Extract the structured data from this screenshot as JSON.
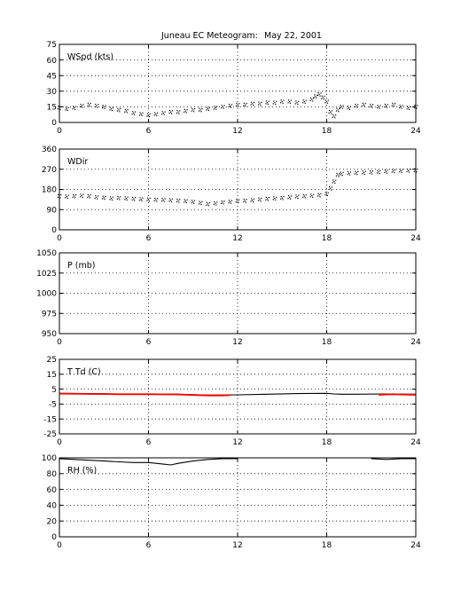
{
  "figure": {
    "title": "Juneau EC Meteogram:",
    "date": "May 22, 2001"
  },
  "colors": {
    "axis": "#000000",
    "grid": "#000000",
    "trace": "#000000",
    "temperature": "#ff0000",
    "dewpoint": "#000000"
  },
  "chart_data": [
    {
      "type": "scatter",
      "label": "WSpd (kts)",
      "xlim": [
        0,
        24
      ],
      "ylim": [
        0,
        75
      ],
      "xticks": [
        0,
        6,
        12,
        18,
        24
      ],
      "yticks": [
        0,
        15,
        30,
        45,
        60,
        75
      ],
      "grid": true,
      "series": [
        {
          "x": [
            0,
            0.5,
            1,
            1.5,
            2,
            2.5,
            3,
            3.5,
            4,
            4.5,
            5,
            5.5,
            6,
            6.5,
            7,
            7.5,
            8,
            8.5,
            9,
            9.5,
            10,
            10.5,
            11,
            11.5,
            12,
            12.5,
            13,
            13.5,
            14,
            14.5,
            15,
            15.5,
            16,
            16.5,
            17,
            17.25,
            17.5,
            17.75,
            18,
            18.25,
            18.5,
            18.75,
            19,
            19.5,
            20,
            20.5,
            21,
            21.5,
            22,
            22.5,
            23,
            23.5,
            24
          ],
          "y": [
            14,
            13,
            14,
            16,
            17,
            16,
            15,
            13,
            12,
            11,
            9,
            8,
            7,
            8,
            9,
            10,
            10,
            11,
            12,
            12,
            13,
            14,
            15,
            16,
            17,
            17,
            18,
            18,
            19,
            19,
            20,
            20,
            19,
            20,
            22,
            25,
            27,
            24,
            20,
            10,
            6,
            12,
            15,
            14,
            16,
            17,
            16,
            15,
            16,
            17,
            15,
            14,
            15
          ]
        }
      ]
    },
    {
      "type": "scatter",
      "label": "WDir",
      "xlim": [
        0,
        24
      ],
      "ylim": [
        0,
        360
      ],
      "xticks": [
        0,
        6,
        12,
        18,
        24
      ],
      "yticks": [
        0,
        90,
        180,
        270,
        360
      ],
      "grid": true,
      "series": [
        {
          "x": [
            0,
            0.5,
            1,
            1.5,
            2,
            2.5,
            3,
            3.5,
            4,
            4.5,
            5,
            5.5,
            6,
            6.5,
            7,
            7.5,
            8,
            8.5,
            9,
            9.5,
            10,
            10.5,
            11,
            11.5,
            12,
            12.5,
            13,
            13.5,
            14,
            14.5,
            15,
            15.5,
            16,
            16.5,
            17,
            17.5,
            18,
            18.25,
            18.5,
            18.75,
            19,
            19.5,
            20,
            20.5,
            21,
            21.5,
            22,
            22.5,
            23,
            23.5,
            24
          ],
          "y": [
            150,
            148,
            150,
            152,
            150,
            145,
            143,
            140,
            142,
            140,
            138,
            136,
            135,
            134,
            133,
            132,
            130,
            128,
            125,
            120,
            115,
            118,
            122,
            125,
            128,
            130,
            132,
            135,
            138,
            140,
            142,
            145,
            148,
            150,
            152,
            155,
            160,
            185,
            215,
            245,
            250,
            252,
            254,
            255,
            256,
            258,
            260,
            262,
            263,
            264,
            265
          ]
        }
      ]
    },
    {
      "type": "line",
      "label": "P (mb)",
      "xlim": [
        0,
        24
      ],
      "ylim": [
        950,
        1050
      ],
      "xticks": [
        0,
        6,
        12,
        18,
        24
      ],
      "yticks": [
        950,
        975,
        1000,
        1025,
        1050
      ],
      "grid": true,
      "series": []
    },
    {
      "type": "line",
      "label": "T Td (C)",
      "xlim": [
        0,
        24
      ],
      "ylim": [
        -25,
        25
      ],
      "xticks": [
        0,
        6,
        12,
        18,
        24
      ],
      "yticks": [
        -25,
        -15,
        -5,
        5,
        15,
        25
      ],
      "grid": true,
      "series": [
        {
          "color": "#000000",
          "x": [
            0,
            2,
            4,
            6,
            8,
            10,
            12,
            14,
            16,
            18,
            18.5,
            19,
            20,
            22,
            24
          ],
          "y": [
            2.2,
            2.0,
            1.8,
            1.8,
            1.6,
            1.0,
            1.2,
            1.6,
            2.0,
            2.2,
            1.8,
            1.6,
            1.6,
            1.8,
            1.6
          ]
        },
        {
          "color": "#ff0000",
          "x": [
            0,
            2,
            4,
            6,
            8,
            10,
            11,
            11.5
          ],
          "y": [
            2.0,
            1.8,
            1.6,
            1.6,
            1.4,
            0.8,
            0.8,
            1.0
          ]
        },
        {
          "color": "#ff0000",
          "x": [
            21.5,
            22,
            22.5,
            23,
            24
          ],
          "y": [
            1.2,
            1.4,
            1.6,
            1.4,
            1.2
          ]
        }
      ]
    },
    {
      "type": "line",
      "label": "RH (%)",
      "xlim": [
        0,
        24
      ],
      "ylim": [
        0,
        100
      ],
      "xticks": [
        0,
        6,
        12,
        18,
        24
      ],
      "yticks": [
        0,
        20,
        40,
        60,
        80,
        100
      ],
      "grid": true,
      "series": [
        {
          "color": "#000000",
          "x": [
            0,
            1,
            2,
            3,
            4,
            5,
            6,
            7,
            7.5,
            8,
            9,
            10,
            11,
            11.5,
            12
          ],
          "y": [
            99,
            98,
            97,
            96,
            95,
            94,
            94,
            92,
            91,
            93,
            96,
            98,
            99,
            99,
            99
          ]
        },
        {
          "color": "#000000",
          "x": [
            21,
            22,
            23,
            24
          ],
          "y": [
            99,
            98,
            99,
            99
          ]
        }
      ]
    }
  ]
}
